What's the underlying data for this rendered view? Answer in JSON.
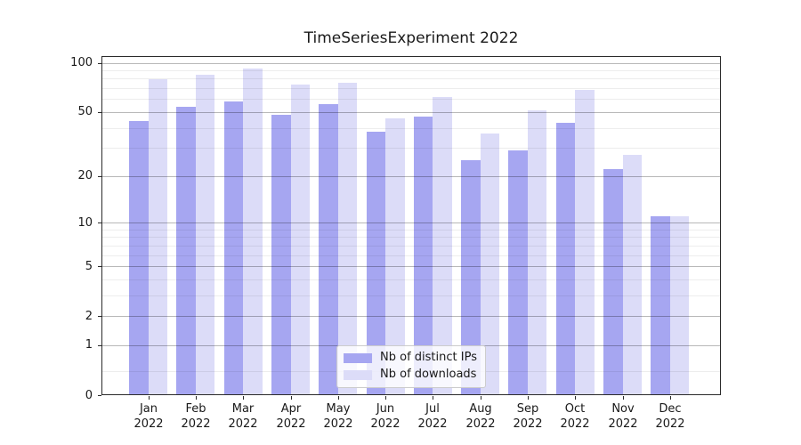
{
  "chart": {
    "title": "TimeSeriesExperiment 2022"
  },
  "chart_data": {
    "type": "bar",
    "title": "TimeSeriesExperiment 2022",
    "categories": [
      "Jan",
      "Feb",
      "Mar",
      "Apr",
      "May",
      "Jun",
      "Jul",
      "Aug",
      "Sep",
      "Oct",
      "Nov",
      "Dec"
    ],
    "category_year": "2022",
    "series": [
      {
        "name": "Nb of distinct IPs",
        "color": "#a6a6f1",
        "values": [
          44,
          54,
          58,
          48,
          56,
          38,
          47,
          25,
          29,
          43,
          22,
          11
        ]
      },
      {
        "name": "Nb of downloads",
        "color": "#dcdcf8",
        "values": [
          80,
          85,
          92,
          74,
          76,
          46,
          62,
          37,
          51,
          68,
          27,
          11
        ]
      }
    ],
    "yscale": "symlog",
    "ylim": [
      0,
      110
    ],
    "major_yticks": [
      0,
      1,
      2,
      5,
      10,
      20,
      50,
      100
    ],
    "minor_yticks": [
      0.4,
      3,
      4,
      6,
      7,
      8,
      9,
      30,
      40,
      60,
      70,
      80,
      90
    ],
    "grid": true,
    "legend_position": "lower center",
    "xlabel": "",
    "ylabel": ""
  },
  "colors": {
    "bar_distinct_ips": "#a6a6f1",
    "bar_downloads": "#dcdcf8",
    "major_gridline": "rgba(0,0,0,0.28)",
    "minor_gridline": "rgba(0,0,0,0.07)",
    "spine": "#2b2b2b",
    "text": "#191919",
    "legend_border": "#cccccc"
  }
}
